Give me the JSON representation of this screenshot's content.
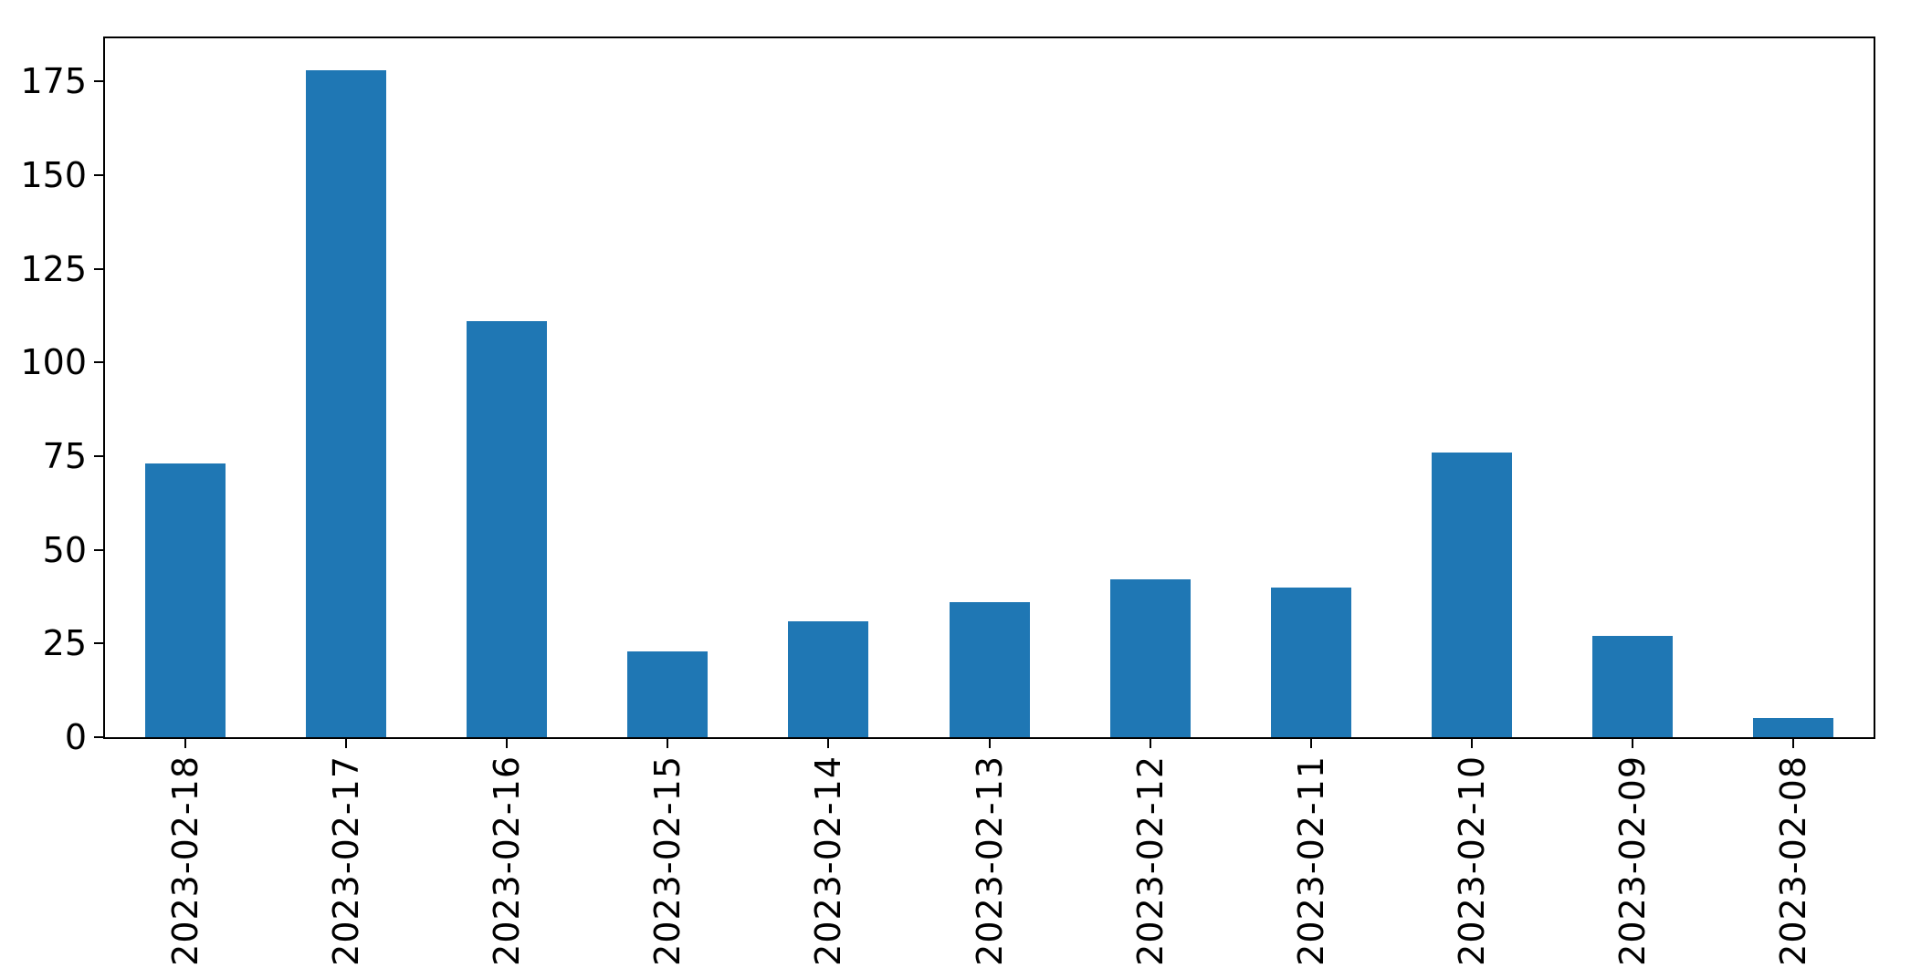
{
  "chart_data": {
    "type": "bar",
    "categories": [
      "2023-02-18",
      "2023-02-17",
      "2023-02-16",
      "2023-02-15",
      "2023-02-14",
      "2023-02-13",
      "2023-02-12",
      "2023-02-11",
      "2023-02-10",
      "2023-02-09",
      "2023-02-08"
    ],
    "values": [
      73,
      178,
      111,
      23,
      31,
      36,
      42,
      40,
      76,
      27,
      5
    ],
    "title": "",
    "xlabel": "",
    "ylabel": "",
    "ylim": [
      0,
      186.5
    ],
    "yticks": [
      0,
      25,
      50,
      75,
      100,
      125,
      150,
      175
    ],
    "grid": false,
    "legend": "none",
    "bar_color": "#1f77b4",
    "spine_color": "#000000",
    "tick_text_color": "#000000",
    "background_color": "#ffffff",
    "bar_width_fraction": 0.5,
    "x_label_rotation_degrees": 90
  }
}
